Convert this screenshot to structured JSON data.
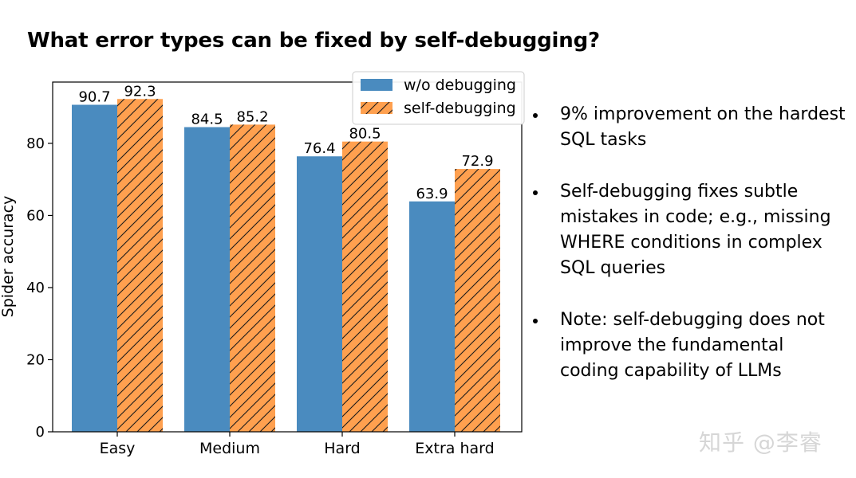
{
  "slide": {
    "title": "What error types can be fixed by self-debugging?",
    "bullets": [
      "9% improvement on the hardest SQL tasks",
      "Self-debugging fixes subtle mistakes in code; e.g., missing WHERE conditions in complex SQL queries",
      "Note: self-debugging does not improve the fundamental coding capability of LLMs"
    ],
    "watermark": "知乎 @李睿"
  },
  "chart_data": {
    "type": "bar",
    "title": "",
    "xlabel": "",
    "ylabel": "Spider accuracy",
    "categories": [
      "Easy",
      "Medium",
      "Hard",
      "Extra hard"
    ],
    "series": [
      {
        "name": "w/o debugging",
        "values": [
          90.7,
          84.5,
          76.4,
          63.9
        ],
        "color": "#4a8bbf",
        "pattern": "solid"
      },
      {
        "name": "self-debugging",
        "values": [
          92.3,
          85.2,
          80.5,
          72.9
        ],
        "color": "#ffa04f",
        "pattern": "hatched"
      }
    ],
    "value_labels": [
      "90.7",
      "84.5",
      "76.4",
      "63.9",
      "92.3",
      "85.2",
      "80.5",
      "72.9"
    ],
    "ylim": [
      0,
      97
    ],
    "yticks": [
      0,
      20,
      40,
      60,
      80
    ],
    "ytick_labels": [
      "0",
      "20",
      "40",
      "60",
      "80"
    ],
    "grid": false,
    "legend_position": "top-right"
  }
}
